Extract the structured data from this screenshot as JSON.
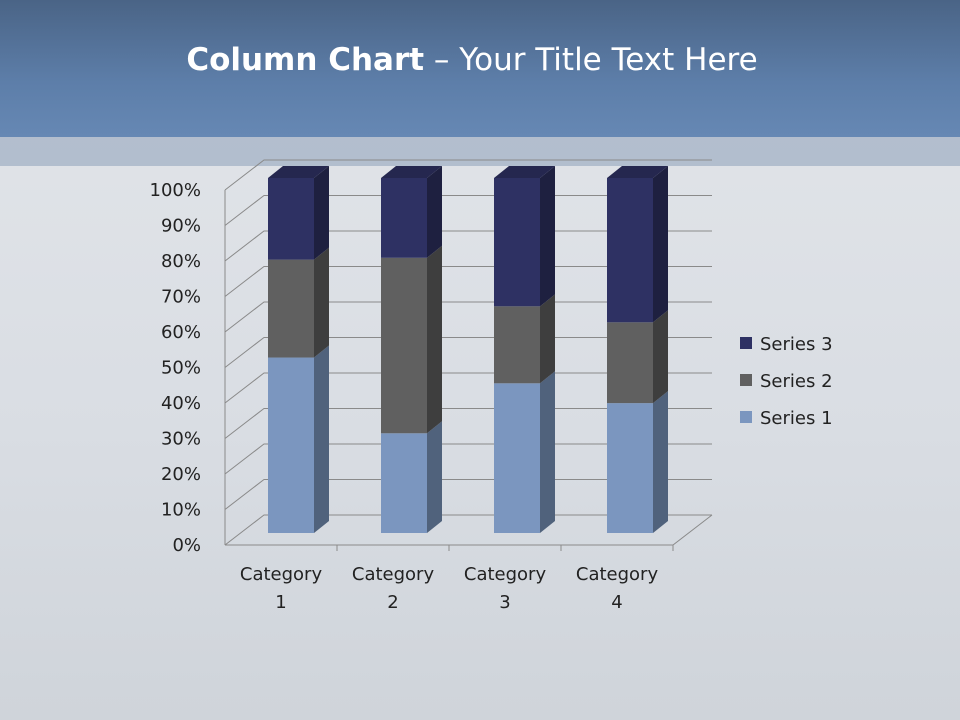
{
  "slide": {
    "title_bold": "Column Chart",
    "title_rest": " – Your Title Text Here"
  },
  "chart_data": {
    "type": "bar",
    "stacked": "percent",
    "three_d": true,
    "categories": [
      "Category 1",
      "Category 2",
      "Category 3",
      "Category 4"
    ],
    "series": [
      {
        "name": "Series 1",
        "values": [
          4.3,
          2.5,
          3.5,
          4.5
        ],
        "color": "#7b96bf"
      },
      {
        "name": "Series 2",
        "values": [
          2.4,
          4.4,
          1.8,
          2.8
        ],
        "color": "#606060"
      },
      {
        "name": "Series 3",
        "values": [
          2,
          2,
          3,
          5
        ],
        "color": "#2e3163"
      }
    ],
    "y_ticks": [
      "0%",
      "10%",
      "20%",
      "30%",
      "40%",
      "50%",
      "60%",
      "70%",
      "80%",
      "90%",
      "100%"
    ],
    "ylim": [
      0,
      100
    ],
    "grid": true,
    "legend": "right"
  }
}
